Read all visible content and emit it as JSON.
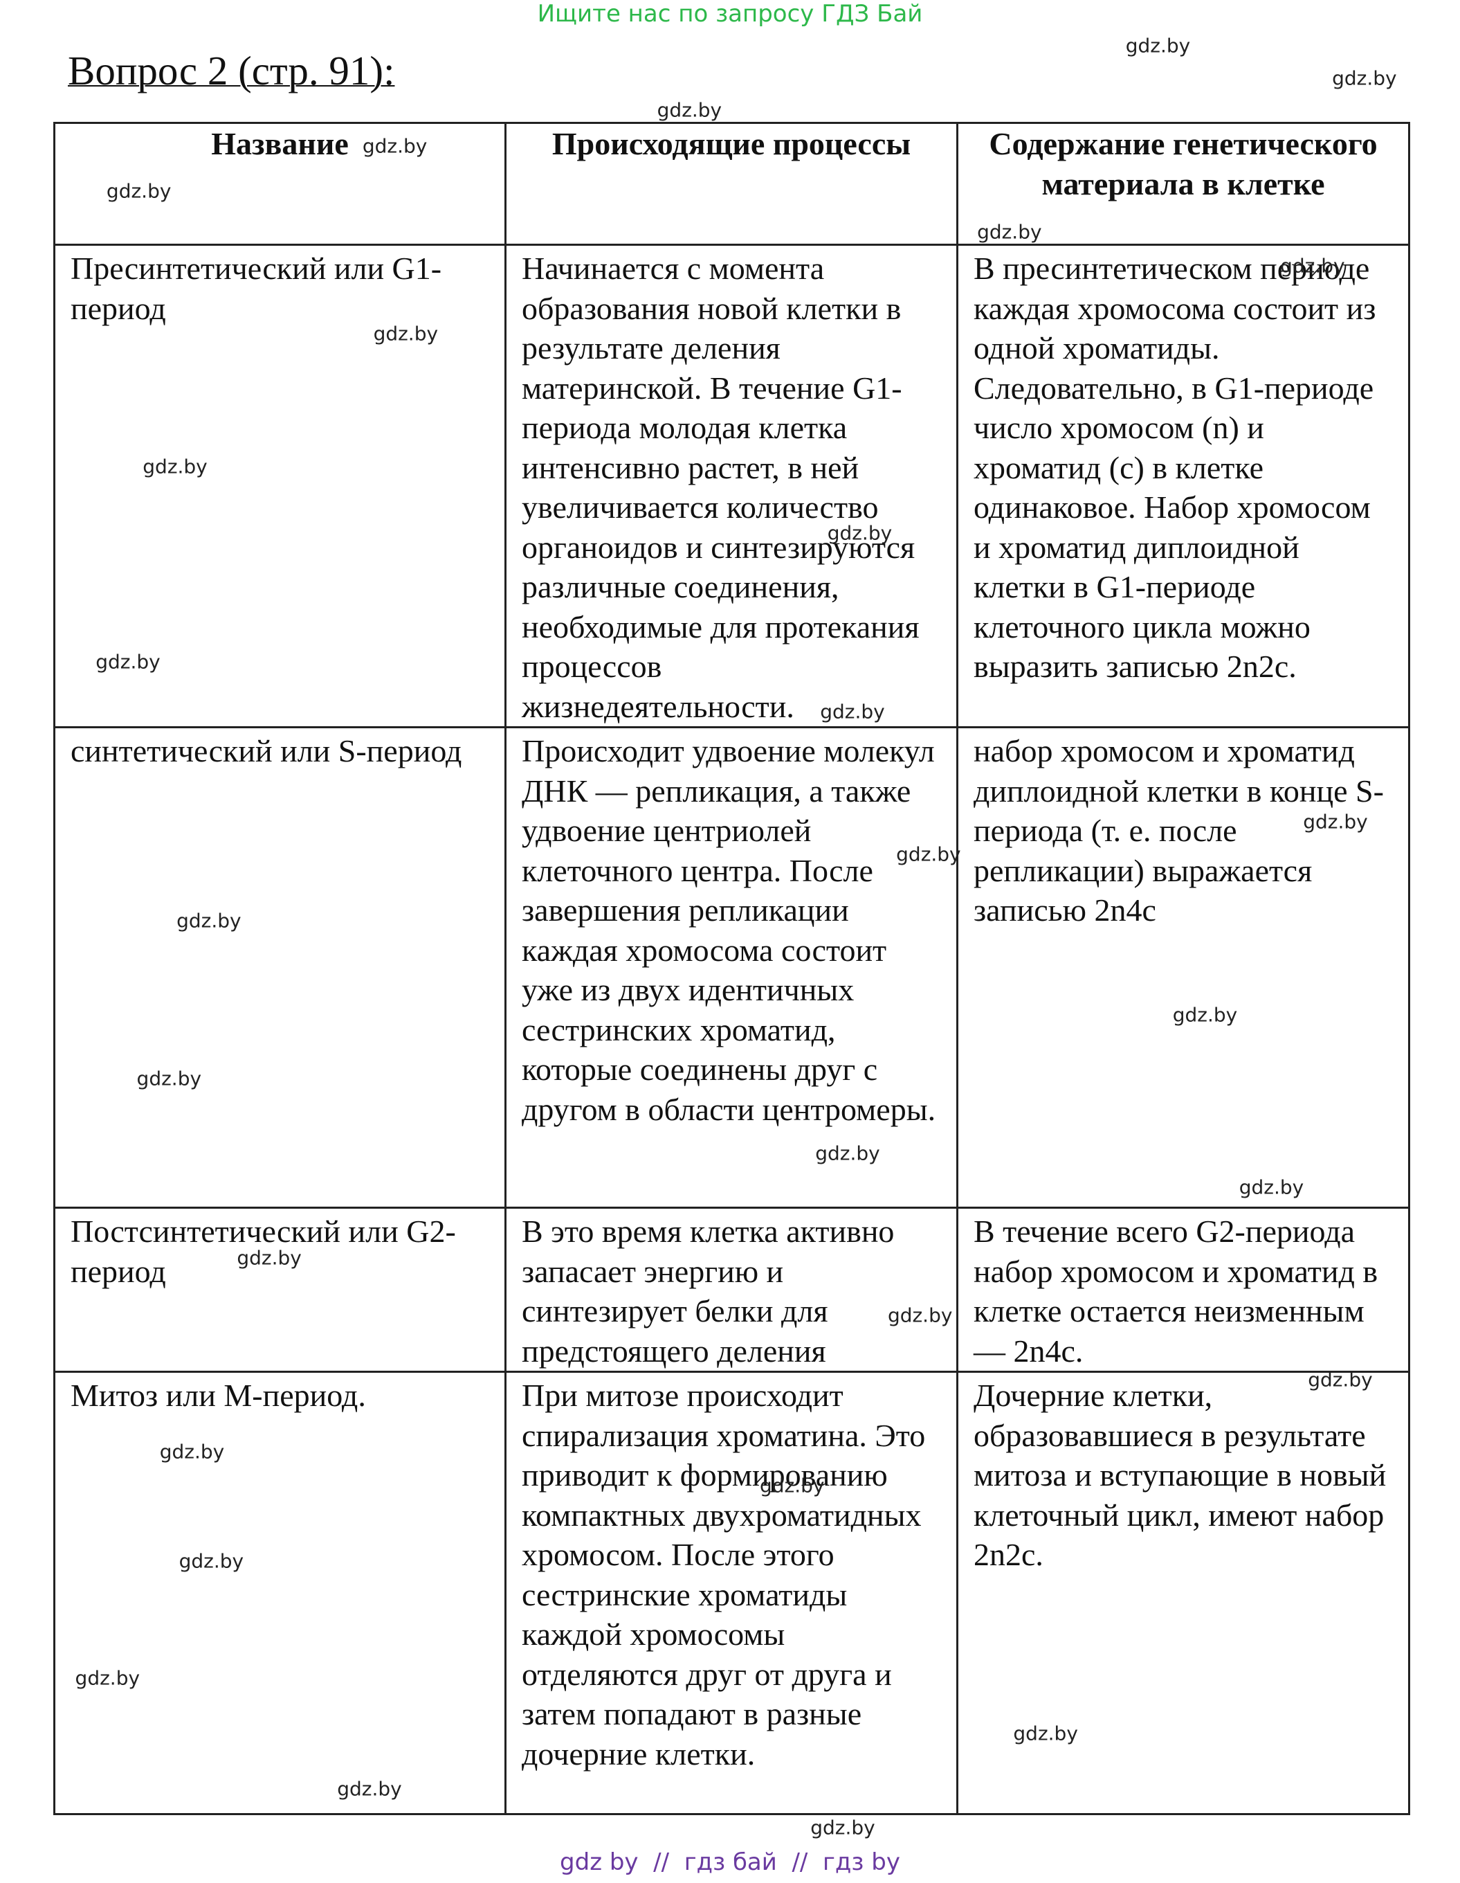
{
  "top_banner": "Ищите нас по запросу ГДЗ Бай",
  "title": "Вопрос 2 (стр. 91):",
  "table": {
    "header": [
      "Название",
      "Происходящие процессы",
      "Содержание генетического материала в клетке"
    ],
    "rows": [
      [
        "Пресинтетический или G1-период",
        "Начинается с момента образования новой клетки в результате деления материнской. В течение G1-периода молодая клетка интенсивно растет, в ней увеличивается количество органоидов и синтезируются различные соединения, необходимые для протекания процессов жизнедеятельности.",
        "В пресинтетическом периоде каждая хромосома состоит из одной хроматиды. Следовательно, в G1-периоде число хромосом (n) и хроматид (c) в клетке одинаковое. Набор хромосом и хроматид диплоидной клетки в G1-периоде клеточного цикла можно выразить записью 2n2c."
      ],
      [
        "синтетический или S-период",
        "Происходит удвоение молекул ДНК — репликация, а также удвоение центриолей клеточного центра. После завершения репликации каждая хромосома состоит уже из двух идентичных сестринских хроматид, которые соединены друг с другом в области центромеры.",
        "набор хромосом и хроматид диплоидной клетки в конце S-периода (т. е. после репликации) выражается записью 2n4c"
      ],
      [
        "Постсинтетический или G2-период",
        "В это время клетка активно запасает энергию и синтезирует белки для предстоящего деления",
        "В течение всего G2-периода набор хромосом и хроматид в клетке остается неизменным — 2n4c."
      ],
      [
        "Митоз или M-период.",
        "При митозе происходит спирализация хроматина. Это приводит к формированию компактных двухроматидных хромосом. После этого сестринские хроматиды каждой хромосомы отделяются друг от друга и затем попадают в разные дочерние клетки.",
        "Дочерние клетки, образовавшиеся в результате митоза и вступающие в новый клеточный цикл, имеют набор 2n2c."
      ]
    ]
  },
  "watermarks": [
    "gdz.by",
    "gdz.by",
    "gdz.by",
    "gdz.by",
    "gdz.by",
    "gdz.by",
    "gdz.by",
    "gdz.by",
    "gdz.by",
    "gdz.by",
    "gdz.by",
    "gdz.by",
    "gdz.by",
    "gdz.by",
    "gdz.by",
    "gdz.by",
    "gdz.by",
    "gdz.by",
    "gdz.by",
    "gdz.by",
    "gdz.by",
    "gdz.by",
    "gdz.by",
    "gdz.by",
    "gdz.by",
    "gdz.by",
    "gdz.by",
    "gdz.by",
    "gdz.by"
  ],
  "footer": "gdz by  //  гдз бай  //  гдз by"
}
